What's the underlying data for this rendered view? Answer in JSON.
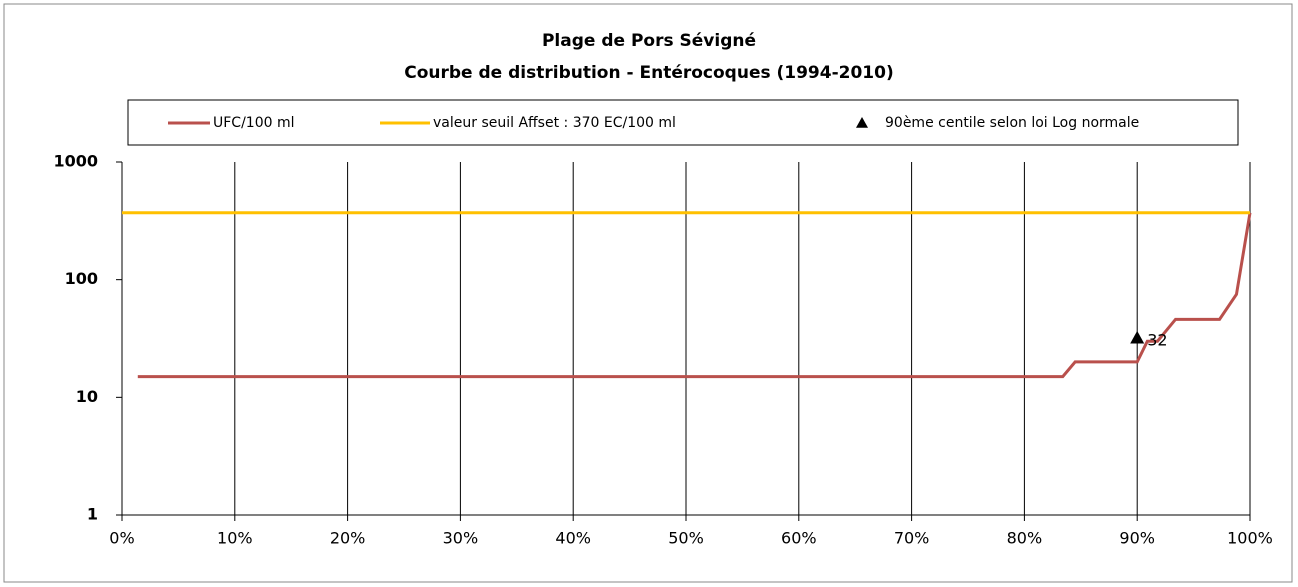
{
  "chart_data": {
    "type": "line",
    "title": "Plage de Pors Sévigné",
    "subtitle": "Courbe de distribution  - Entérocoques (1994-2010)",
    "log_scale": true,
    "grid": "x",
    "legend": "top",
    "xlim": [
      0,
      100
    ],
    "xticks": [
      {
        "value": 0,
        "label": "0%"
      },
      {
        "value": 10,
        "label": "10%"
      },
      {
        "value": 20,
        "label": "20%"
      },
      {
        "value": 30,
        "label": "30%"
      },
      {
        "value": 40,
        "label": "40%"
      },
      {
        "value": 50,
        "label": "50%"
      },
      {
        "value": 60,
        "label": "60%"
      },
      {
        "value": 70,
        "label": "70%"
      },
      {
        "value": 80,
        "label": "80%"
      },
      {
        "value": 90,
        "label": "90%"
      },
      {
        "value": 100,
        "label": "100%"
      }
    ],
    "ylim": [
      1,
      1000
    ],
    "yticks": [
      1,
      10,
      100,
      1000
    ],
    "series": [
      {
        "name": "UFC/100 ml",
        "type": "line",
        "color": "#b9504c",
        "x": [
          1.4,
          83.4,
          84.5,
          90,
          90.9,
          91.8,
          93.4,
          97.3,
          98.8,
          100
        ],
        "values": [
          15,
          15,
          20,
          20,
          30,
          30,
          46,
          46,
          75,
          370
        ]
      },
      {
        "name": "valeur seuil Affset : 370 EC/100  ml",
        "type": "line",
        "color": "#ffc000",
        "x": [
          0,
          100
        ],
        "values": [
          370,
          370
        ]
      },
      {
        "name": "90ème centile selon loi Log normale",
        "type": "scatter",
        "marker": "triangle",
        "color": "#000000",
        "x": [
          90
        ],
        "values": [
          32
        ]
      }
    ]
  }
}
